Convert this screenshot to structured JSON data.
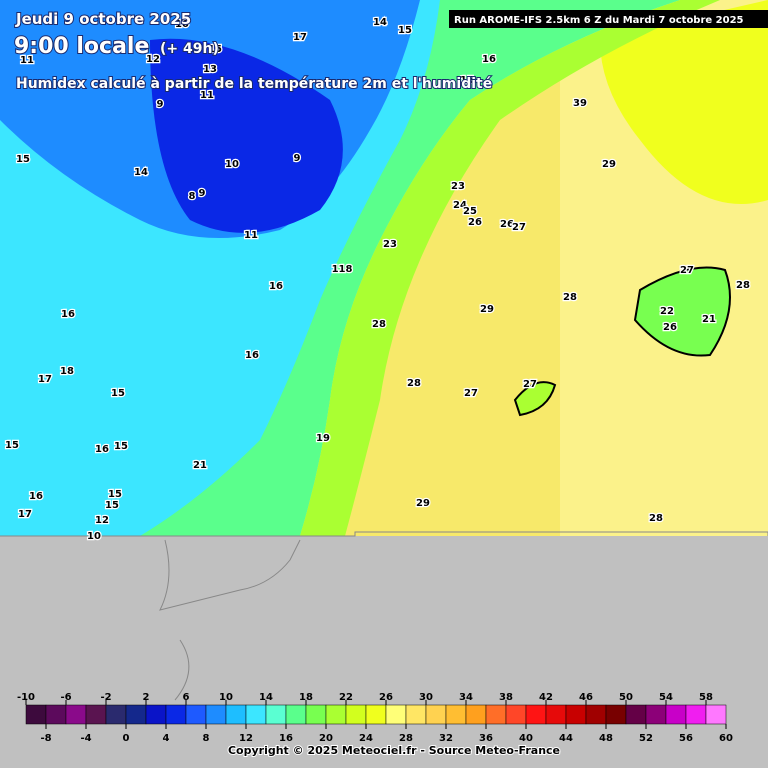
{
  "header": {
    "date": "Jeudi 9 octobre 2025",
    "time": "9:00 locale",
    "lead": "(+ 49h)",
    "subtitle": "Humidex calculé à partir de la température 2m et l'humidité",
    "run": "Run AROME-IFS 2.5km 6 Z du Mardi 7 octobre 2025"
  },
  "contour_labels": [
    "10",
    "14",
    "15",
    "17",
    "15",
    "11",
    "12",
    "13",
    "16",
    "15",
    "11",
    "9",
    "39",
    "15",
    "10",
    "9",
    "14",
    "8",
    "9",
    "29",
    "23",
    "24",
    "25",
    "26",
    "26",
    "27",
    "11",
    "23",
    "118",
    "27",
    "16",
    "28",
    "28",
    "29",
    "16",
    "22",
    "21",
    "28",
    "26",
    "16",
    "17",
    "18",
    "28",
    "15",
    "27",
    "27",
    "15",
    "16",
    "15",
    "19",
    "21",
    "16",
    "15",
    "15",
    "29",
    "17",
    "12",
    "28",
    "10"
  ],
  "legend": {
    "range": [
      -10,
      60
    ],
    "colors": [
      "#3d0a3d",
      "#5c0a5c",
      "#8a0a8a",
      "#5a1450",
      "#2a2a6e",
      "#14288c",
      "#0a14c8",
      "#0a28e6",
      "#1e5aff",
      "#1e8cff",
      "#1ebeff",
      "#3ce6ff",
      "#5affd2",
      "#5aff8c",
      "#78ff50",
      "#aaff32",
      "#d2ff1e",
      "#f0ff1e",
      "#ffff78",
      "#ffe664",
      "#ffd250",
      "#ffbe32",
      "#ffa01e",
      "#ff6e28",
      "#ff4628",
      "#ff1414",
      "#e60a0a",
      "#c80000",
      "#a00000",
      "#780000",
      "#640046",
      "#8c0078",
      "#c800c8",
      "#f01ef0",
      "#ff78ff"
    ],
    "top_ticks": [
      -10,
      -6,
      -2,
      2,
      6,
      10,
      14,
      18,
      22,
      26,
      30,
      34,
      38,
      42,
      46,
      50,
      54,
      58
    ],
    "bottom_ticks": [
      -8,
      -4,
      0,
      4,
      8,
      12,
      16,
      20,
      24,
      28,
      32,
      36,
      40,
      44,
      48,
      52,
      56,
      60
    ]
  },
  "footer": {
    "copyright": "Copyright © 2025 Meteociel.fr - Source Meteo-France"
  }
}
